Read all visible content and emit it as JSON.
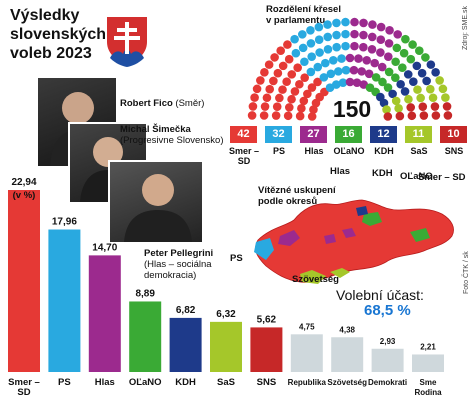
{
  "header": {
    "title_lines": [
      "Výsledky",
      "slovenských",
      "voleb 2023"
    ]
  },
  "politicians": [
    {
      "name": "Robert Fico",
      "party": "(Směr)"
    },
    {
      "name": "Michal Šimečka",
      "party": "(Progresivne Slovensko)"
    },
    {
      "name": "Peter Pellegrini",
      "party_lines": [
        "(Hlas – sociálna",
        "demokracia)"
      ]
    }
  ],
  "parliament": {
    "title_lines": [
      "Rozdělení křesel",
      "v parlamentu"
    ],
    "total": "150",
    "seats": [
      {
        "party": "Smer –\nSD",
        "value": "42",
        "color": "#e53935"
      },
      {
        "party": "PS",
        "value": "32",
        "color": "#29a9e0"
      },
      {
        "party": "Hlas",
        "value": "27",
        "color": "#9c2a8e"
      },
      {
        "party": "OĽaNO",
        "value": "16",
        "color": "#3aaa35"
      },
      {
        "party": "KDH",
        "value": "12",
        "color": "#1e3a8a"
      },
      {
        "party": "SaS",
        "value": "11",
        "color": "#a5c72a"
      },
      {
        "party": "SNS",
        "value": "10",
        "color": "#c62828"
      }
    ]
  },
  "map": {
    "title_lines": [
      "Vítězné uskupení",
      "podle okresů"
    ],
    "labels": [
      "Hlas",
      "KDH",
      "OĽaNO",
      "Smer – SD",
      "PS",
      "Szövetség"
    ]
  },
  "turnout": {
    "label": "Volební účast:",
    "value": "68,5 %"
  },
  "credits": {
    "source": "Zdroj: SME.sk",
    "photo": "Foto ČTK / sk"
  },
  "chart_data": {
    "type": "bar",
    "unit_label": "(v %)",
    "categories": [
      "Smer –\nSD",
      "PS",
      "Hlas",
      "OĽaNO",
      "KDH",
      "SaS",
      "SNS",
      "Republika",
      "Szövetség",
      "Demokrati",
      "Sme\nRodina"
    ],
    "values": [
      22.94,
      17.96,
      14.7,
      8.89,
      6.82,
      6.32,
      5.62,
      4.75,
      4.38,
      2.93,
      2.21
    ],
    "value_labels": [
      "22,94",
      "17,96",
      "14,70",
      "8,89",
      "6,82",
      "6,32",
      "5,62",
      "4,75",
      "4,38",
      "2,93",
      "2,21"
    ],
    "colors": [
      "#e53935",
      "#29a9e0",
      "#9c2a8e",
      "#3aaa35",
      "#1e3a8a",
      "#a5c72a",
      "#c62828",
      "#cfd8dc",
      "#cfd8dc",
      "#cfd8dc",
      "#cfd8dc"
    ],
    "ylim": [
      0,
      24
    ],
    "title": "",
    "xlabel": "",
    "ylabel": ""
  }
}
